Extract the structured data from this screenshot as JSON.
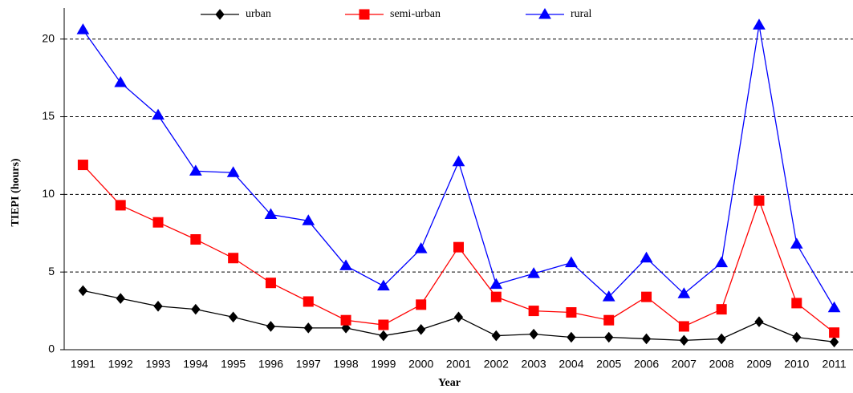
{
  "chart_data": {
    "type": "line",
    "xlabel": "Year",
    "ylabel": "TIEPI (hours)",
    "categories": [
      "1991",
      "1992",
      "1993",
      "1994",
      "1995",
      "1996",
      "1997",
      "1998",
      "1999",
      "2000",
      "2001",
      "2002",
      "2003",
      "2004",
      "2005",
      "2006",
      "2007",
      "2008",
      "2009",
      "2010",
      "2011"
    ],
    "series": [
      {
        "name": "urban",
        "color": "#000000",
        "marker": "diamond",
        "values": [
          3.8,
          3.3,
          2.8,
          2.6,
          2.1,
          1.5,
          1.4,
          1.4,
          0.9,
          1.3,
          2.1,
          0.9,
          1.0,
          0.8,
          0.8,
          0.7,
          0.6,
          0.7,
          1.8,
          0.8,
          0.5
        ]
      },
      {
        "name": "semi-urban",
        "color": "#ff0000",
        "marker": "square",
        "values": [
          11.9,
          9.3,
          8.2,
          7.1,
          5.9,
          4.3,
          3.1,
          1.9,
          1.6,
          2.9,
          6.6,
          3.4,
          2.5,
          2.4,
          1.9,
          3.4,
          1.5,
          2.6,
          9.6,
          3.0,
          1.1
        ]
      },
      {
        "name": "rural",
        "color": "#0000ff",
        "marker": "triangle",
        "values": [
          20.6,
          17.2,
          15.1,
          11.5,
          11.4,
          8.7,
          8.3,
          5.4,
          4.1,
          6.5,
          12.1,
          4.2,
          4.9,
          5.6,
          3.4,
          5.9,
          3.6,
          5.6,
          20.9,
          6.8,
          2.7
        ]
      }
    ],
    "ylim": [
      0,
      22
    ],
    "yticks": [
      0,
      5,
      10,
      15,
      20
    ],
    "grid": true,
    "legend": "top"
  }
}
